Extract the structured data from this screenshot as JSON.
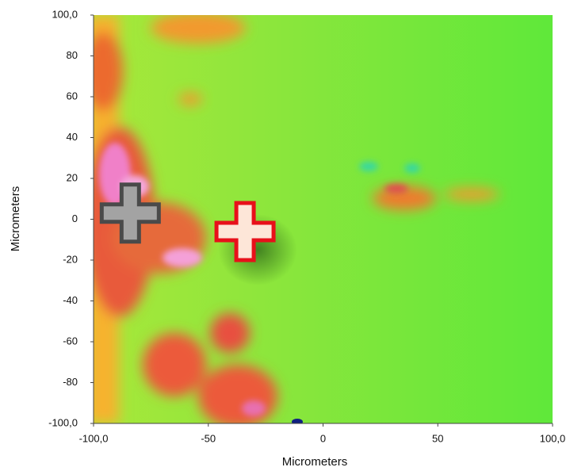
{
  "chart_data": {
    "type": "scatter",
    "x_label": "Micrometers",
    "y_label": "Micrometers",
    "xlim": [
      -100,
      100
    ],
    "ylim": [
      -100,
      100
    ],
    "xticks": [
      {
        "value": -100,
        "label": "-100,0"
      },
      -50,
      0,
      50,
      {
        "value": 100,
        "label": "100,0"
      }
    ],
    "yticks": [
      {
        "value": 100,
        "label": "100,0"
      },
      80,
      60,
      40,
      20,
      0,
      -20,
      -40,
      -60,
      -80,
      {
        "value": -100,
        "label": "-100,0"
      }
    ],
    "x": [
      -84,
      -34
    ],
    "y": [
      3,
      -6
    ],
    "colors": [
      "#a3a3a3",
      "#fde6d8"
    ],
    "edge_colors": [
      "#4a4a4a",
      "#e8101a"
    ]
  }
}
